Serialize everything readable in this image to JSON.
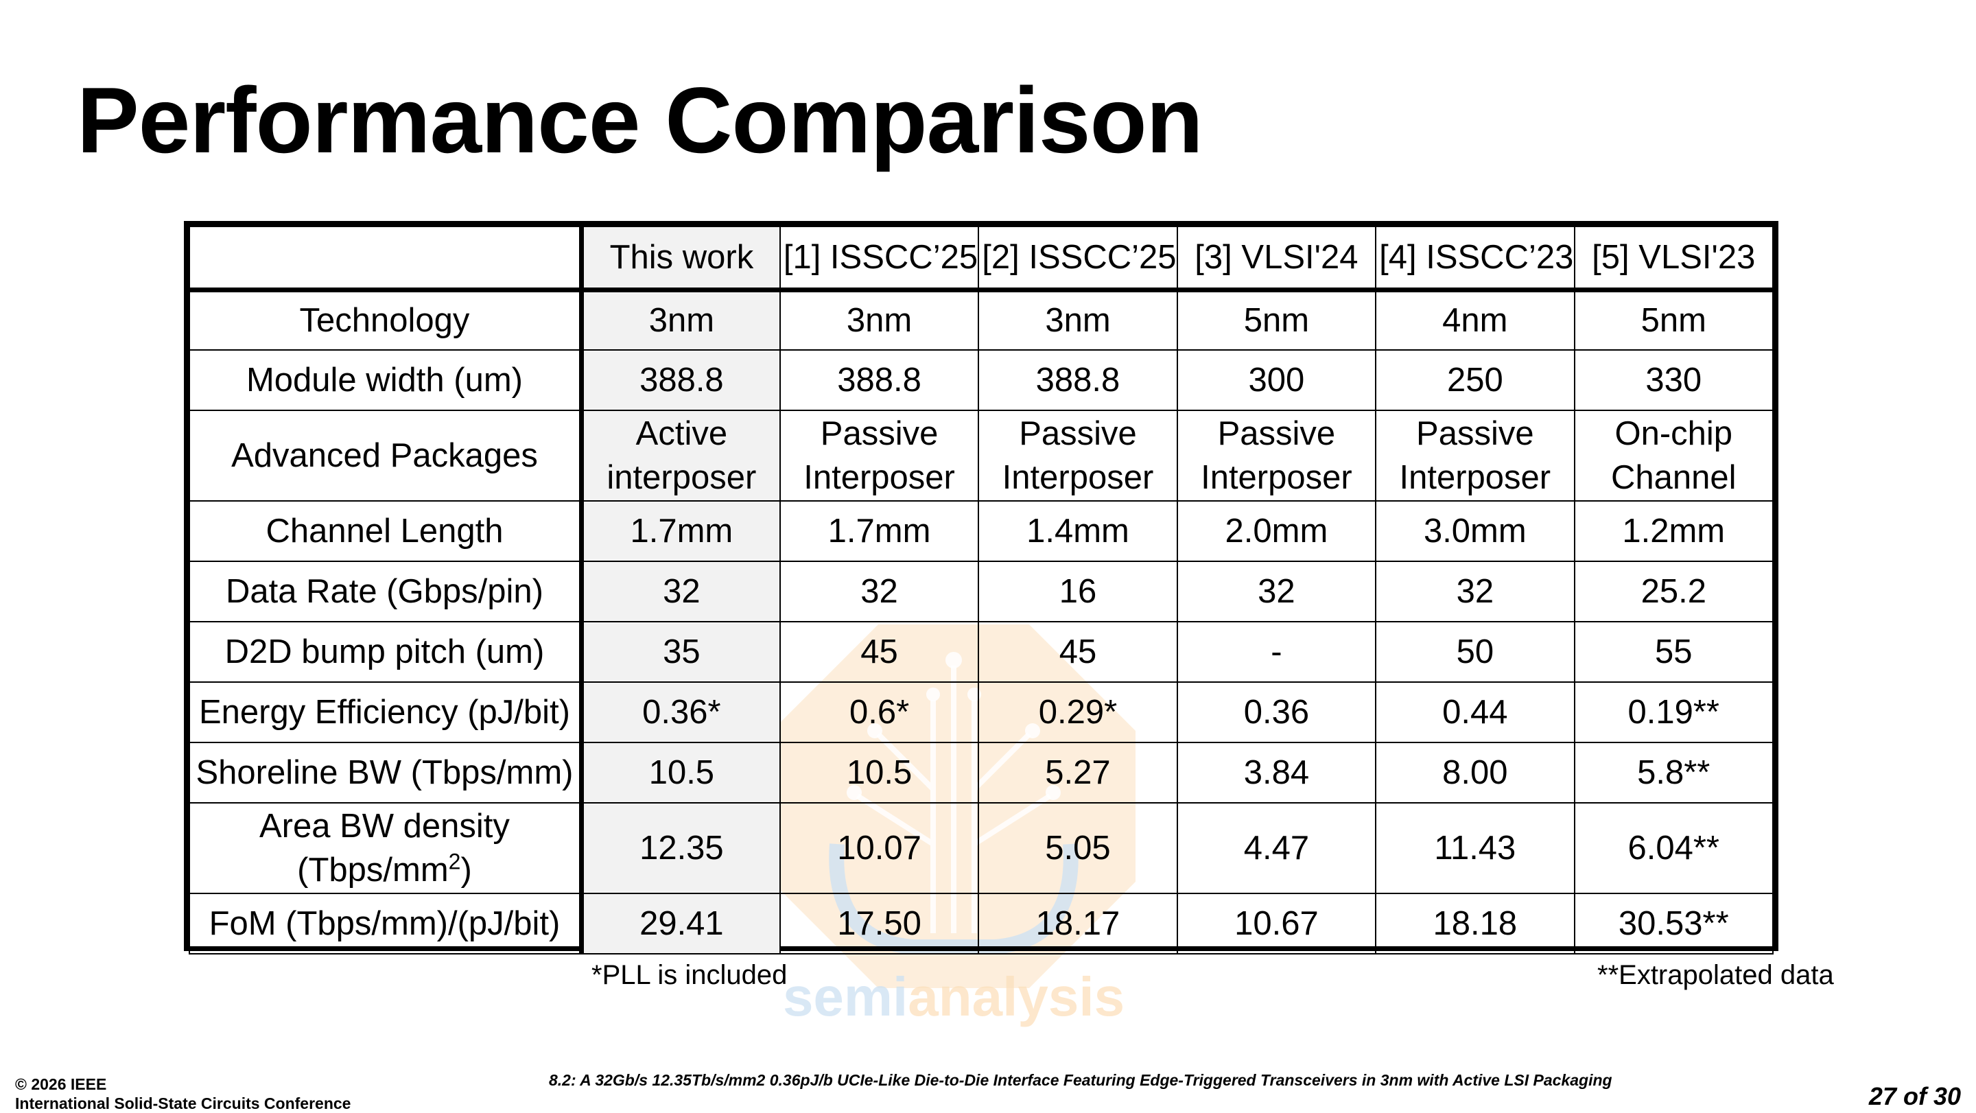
{
  "title": "Performance Comparison",
  "table": {
    "corner": "",
    "columns": [
      "This work",
      "[1] ISSCC’25",
      "[2] ISSCC’25",
      "[3] VLSI'24",
      "[4] ISSCC’23",
      "[5] VLSI'23"
    ],
    "rows": [
      {
        "label": "Technology",
        "cells": [
          "3nm",
          "3nm",
          "3nm",
          "5nm",
          "4nm",
          "5nm"
        ]
      },
      {
        "label": "Module width (um)",
        "cells": [
          "388.8",
          "388.8",
          "388.8",
          "300",
          "250",
          "330"
        ]
      },
      {
        "label": "Advanced Packages",
        "cells": [
          "Active interposer",
          "Passive Interposer",
          "Passive Interposer",
          "Passive Interposer",
          "Passive Interposer",
          "On-chip Channel"
        ]
      },
      {
        "label": "Channel Length",
        "cells": [
          "1.7mm",
          "1.7mm",
          "1.4mm",
          "2.0mm",
          "3.0mm",
          "1.2mm"
        ]
      },
      {
        "label": "Data Rate (Gbps/pin)",
        "cells": [
          "32",
          "32",
          "16",
          "32",
          "32",
          "25.2"
        ]
      },
      {
        "label": "D2D bump pitch (um)",
        "cells": [
          "35",
          "45",
          "45",
          "-",
          "50",
          "55"
        ]
      },
      {
        "label": "Energy Efficiency (pJ/bit)",
        "cells": [
          "0.36*",
          "0.6*",
          "0.29*",
          "0.36",
          "0.44",
          "0.19**"
        ]
      },
      {
        "label": "Shoreline BW (Tbps/mm)",
        "cells": [
          "10.5",
          "10.5",
          "5.27",
          "3.84",
          "8.00",
          "5.8**"
        ]
      },
      {
        "label": "Area BW density",
        "label_unit": "(Tbps/mm",
        "label_sup": "2",
        "label_close": ")",
        "cells": [
          "12.35",
          "10.07",
          "5.05",
          "4.47",
          "11.43",
          "6.04**"
        ]
      },
      {
        "label": "FoM (Tbps/mm)/(pJ/bit)",
        "cells": [
          "29.41",
          "17.50",
          "18.17",
          "10.67",
          "18.18",
          "30.53**"
        ]
      }
    ]
  },
  "notes": {
    "pll": "*PLL is included",
    "extrapolated": "**Extrapolated data"
  },
  "watermark": {
    "text_semi": "semi",
    "text_analysis": "analysis",
    "colors": {
      "orange": "#f9c98a",
      "blue": "#a9cbe8"
    }
  },
  "footer": {
    "copyright": "© 2026 IEEE",
    "conference": "International Solid-State Circuits Conference",
    "paper": "8.2: A 32Gb/s 12.35Tb/s/mm2 0.36pJ/b UCIe-Like Die-to-Die Interface Featuring Edge-Triggered Transceivers in 3nm with Active LSI Packaging",
    "page": "27 of 30"
  }
}
